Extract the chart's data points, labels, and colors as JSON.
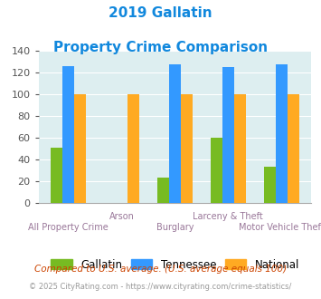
{
  "title_line1": "2019 Gallatin",
  "title_line2": "Property Crime Comparison",
  "categories": [
    "All Property Crime",
    "Arson",
    "Burglary",
    "Larceny & Theft",
    "Motor Vehicle Theft"
  ],
  "gallatin": [
    51,
    0,
    24,
    60,
    34
  ],
  "tennessee": [
    126,
    0,
    128,
    125,
    128
  ],
  "national": [
    100,
    100,
    100,
    100,
    100
  ],
  "gallatin_color": "#77bb22",
  "tennessee_color": "#3399ff",
  "national_color": "#ffaa22",
  "bg_color": "#ddeef0",
  "ylim": [
    0,
    140
  ],
  "yticks": [
    0,
    20,
    40,
    60,
    80,
    100,
    120,
    140
  ],
  "footnote1": "Compared to U.S. average. (U.S. average equals 100)",
  "footnote2": "© 2025 CityRating.com - https://www.cityrating.com/crime-statistics/",
  "title_color": "#1188dd",
  "footnote1_color": "#cc4400",
  "footnote2_color": "#999999",
  "xlabel_top_color": "#997799",
  "xlabel_bot_color": "#997799",
  "tick_color": "#555555"
}
